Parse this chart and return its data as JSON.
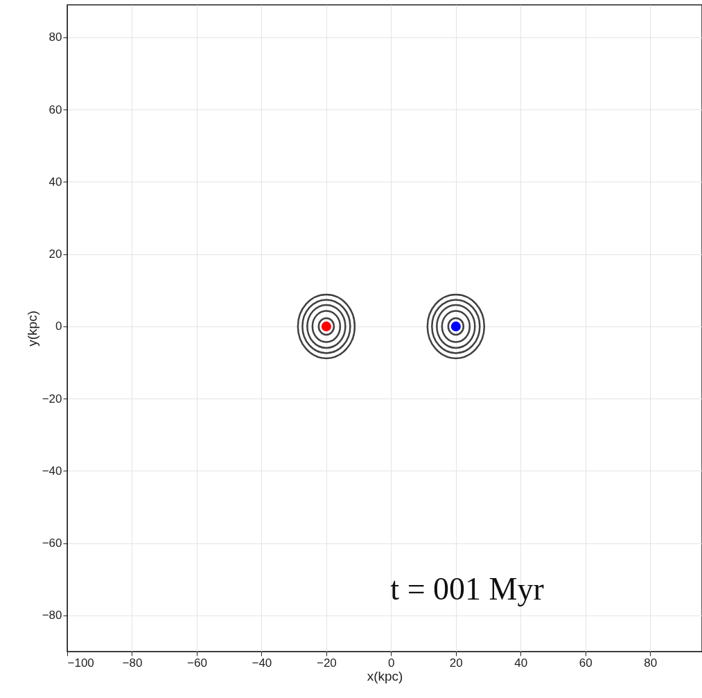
{
  "chart_data": {
    "type": "scatter",
    "xlabel": "x(kpc)",
    "ylabel": "y(kpc)",
    "xlim": [
      -100,
      96
    ],
    "ylim": [
      -90,
      89
    ],
    "xticks": [
      -100,
      -80,
      -60,
      -40,
      -20,
      0,
      20,
      40,
      60,
      80
    ],
    "yticks": [
      -80,
      -60,
      -40,
      -20,
      0,
      20,
      40,
      60,
      80
    ],
    "grid": true,
    "annotations": [
      "t = 001 Myr"
    ],
    "series": [
      {
        "color": "#ff0000",
        "marker": "circle",
        "x": [
          -20
        ],
        "values": [
          0
        ]
      },
      {
        "color": "#0000ff",
        "marker": "circle",
        "x": [
          20
        ],
        "values": [
          0
        ]
      }
    ]
  }
}
